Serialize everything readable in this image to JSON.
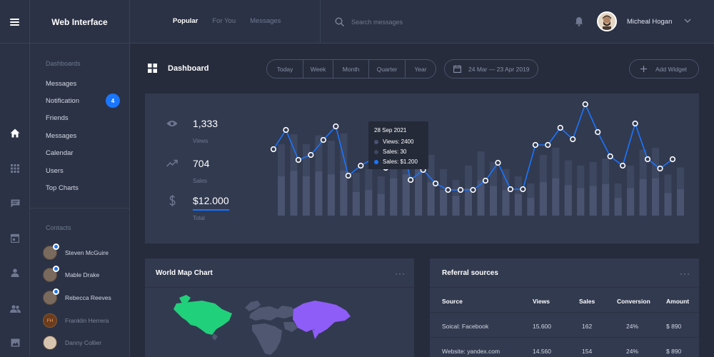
{
  "app": {
    "title": "Web Interface"
  },
  "header": {
    "tabs": [
      {
        "label": "Popular",
        "active": true
      },
      {
        "label": "For You",
        "active": false
      },
      {
        "label": "Messages",
        "active": false
      }
    ],
    "search_placeholder": "Search messages",
    "user": {
      "name": "Micheal Hogan"
    }
  },
  "rail": {
    "icons": [
      "home-icon",
      "grid-icon",
      "chat-icon",
      "calendar-icon",
      "user-icon",
      "users-icon",
      "image-icon"
    ]
  },
  "sidenav": {
    "section_title": "Dashboards",
    "items": [
      {
        "label": "Messages"
      },
      {
        "label": "Notification",
        "badge": "4"
      },
      {
        "label": "Friends"
      },
      {
        "label": "Messages"
      },
      {
        "label": "Calendar"
      },
      {
        "label": "Users"
      },
      {
        "label": "Top Charts"
      }
    ],
    "contacts_title": "Contacts",
    "contacts": [
      {
        "name": "Steven McGuire",
        "online": true
      },
      {
        "name": "Mable Drake",
        "online": true
      },
      {
        "name": "Rebecca Reeves",
        "online": true
      },
      {
        "name": "Franklin Herrera",
        "online": false,
        "initials": "FH"
      },
      {
        "name": "Danny Collier",
        "online": false
      }
    ]
  },
  "dashboard": {
    "title": "Dashboard",
    "ranges": [
      "Today",
      "Week",
      "Month",
      "Quarter",
      "Year"
    ],
    "date_range": "24 Mar — 23 Apr 2019",
    "add_widget": "Add Widget"
  },
  "stats": {
    "views": {
      "value": "1,333",
      "label": "Views"
    },
    "sales": {
      "value": "704",
      "label": "Sales"
    },
    "total": {
      "value": "$12.000",
      "label": "Total"
    }
  },
  "tooltip": {
    "date": "28 Sep 2021",
    "views": "Views: 2400",
    "sales": "Sales: 30",
    "sales_amount": "Sales: $1.200"
  },
  "chart_data": {
    "type": "line",
    "series": [
      {
        "values": [
          73,
          100,
          58,
          65,
          86,
          105,
          36,
          50,
          60,
          47,
          103,
          30,
          44,
          25,
          16,
          16,
          16,
          29,
          54,
          17,
          17,
          79,
          79,
          103,
          87,
          136,
          97,
          63,
          50,
          109,
          59,
          46,
          59
        ],
        "color": "#1a75ff"
      },
      {
        "values": [
          200,
          228,
          200,
          225,
          210,
          230,
          120,
          130,
          110,
          190,
          210,
          240,
          170,
          130,
          100,
          140,
          180,
          150,
          130,
          110,
          90,
          170,
          190,
          155,
          140,
          150,
          160,
          90,
          140,
          185,
          190,
          115,
          135
        ],
        "color": "#4a5470"
      }
    ],
    "colors": {
      "line": "#1a75ff",
      "bar_light": "#4a5470",
      "bar_dark": "#3e4760"
    }
  },
  "world_map": {
    "title": "World Map Chart",
    "more": "···",
    "colors": {
      "north_america": "#21d07a",
      "greenland": "#21d07a",
      "asia": "#8e5cf7",
      "rest": "#4f5870"
    }
  },
  "referral": {
    "title": "Referral sources",
    "more": "···",
    "columns": [
      "Source",
      "Views",
      "Sales",
      "Conversion",
      "Amount"
    ],
    "rows": [
      [
        "Soical: Facebook",
        "15.600",
        "162",
        "24%",
        "$ 890"
      ],
      [
        "Website: yandex.com",
        "14.560",
        "154",
        "24%",
        "$ 890"
      ]
    ]
  }
}
